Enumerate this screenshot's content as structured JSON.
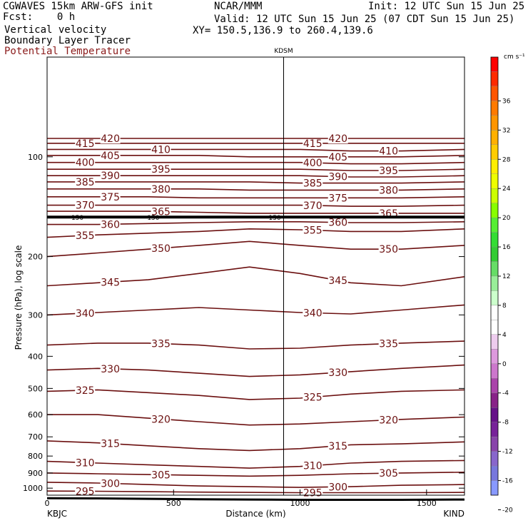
{
  "header": {
    "model": "CGWAVES 15km ARW-GFS init",
    "fcst_label": "Fcst:",
    "fcst_value": "0 h",
    "field1": "Vertical velocity",
    "field2": "Boundary Layer Tracer",
    "field3": "Potential Temperature",
    "agency": "NCAR/MMM",
    "init": "Init: 12 UTC Sun 15 Jun 25",
    "valid": "Valid: 12 UTC Sun 15 Jun 25 (07 CDT Sun 15 Jun 25)",
    "xy": "XY= 150.5,136.9 to 260.4,139.6"
  },
  "colors": {
    "contour": "#6b0f0f",
    "axis": "#000000"
  },
  "chart_data": {
    "type": "cross-section-contour",
    "xlabel": "Distance (km)",
    "ylabel": "Pressure (hPa), log scale",
    "xlim": [
      0,
      1650
    ],
    "ylim": [
      1050,
      50
    ],
    "y_log": true,
    "x_ticks": [
      0,
      500,
      1000,
      1500
    ],
    "y_ticks": [
      100,
      200,
      300,
      400,
      500,
      600,
      700,
      800,
      900,
      1000
    ],
    "station_marker": {
      "label": "KDSM",
      "x": 935
    },
    "left_station": "KBJC",
    "right_station": "KIND",
    "isentropes": [
      {
        "theta": 295,
        "p": [
          1020,
          1022,
          1025,
          1028,
          1030,
          1032,
          1032,
          1032,
          1030
        ]
      },
      {
        "theta": 300,
        "p": [
          960,
          965,
          975,
          985,
          990,
          995,
          990,
          980,
          975
        ]
      },
      {
        "theta": 305,
        "p": [
          900,
          905,
          910,
          915,
          920,
          915,
          905,
          900,
          895
        ]
      },
      {
        "theta": 310,
        "p": [
          830,
          840,
          850,
          860,
          870,
          860,
          840,
          830,
          825
        ]
      },
      {
        "theta": 315,
        "p": [
          720,
          730,
          745,
          760,
          770,
          760,
          740,
          735,
          725
        ]
      },
      {
        "theta": 320,
        "p": [
          600,
          600,
          615,
          630,
          645,
          640,
          630,
          620,
          610
        ]
      },
      {
        "theta": 325,
        "p": [
          510,
          505,
          515,
          525,
          540,
          535,
          520,
          510,
          505
        ]
      },
      {
        "theta": 330,
        "p": [
          440,
          435,
          440,
          450,
          460,
          455,
          445,
          435,
          425
        ]
      },
      {
        "theta": 335,
        "p": [
          370,
          365,
          365,
          370,
          380,
          378,
          370,
          365,
          360
        ]
      },
      {
        "theta": 340,
        "p": [
          300,
          295,
          290,
          285,
          290,
          295,
          298,
          290,
          280
        ]
      },
      {
        "theta": 345,
        "p": [
          245,
          240,
          235,
          225,
          215,
          225,
          240,
          245,
          230
        ]
      },
      {
        "theta": 350,
        "p": [
          200,
          195,
          190,
          185,
          180,
          185,
          190,
          190,
          185
        ]
      },
      {
        "theta": 355,
        "p": [
          175,
          172,
          170,
          168,
          165,
          166,
          168,
          168,
          165
        ]
      },
      {
        "theta": 360,
        "p": [
          160,
          160,
          159,
          158,
          157,
          157,
          158,
          158,
          157
        ]
      },
      {
        "theta": 365,
        "p": [
          146,
          146,
          146,
          147,
          148,
          148,
          148,
          148,
          148
        ]
      },
      {
        "theta": 370,
        "p": [
          140,
          140,
          140,
          140,
          140,
          140,
          141,
          141,
          140
        ]
      },
      {
        "theta": 375,
        "p": [
          132,
          132,
          132,
          133,
          133,
          133,
          133,
          133,
          132
        ]
      },
      {
        "theta": 380,
        "p": [
          125,
          125,
          125,
          125,
          126,
          126,
          126,
          126,
          125
        ]
      },
      {
        "theta": 385,
        "p": [
          119,
          119,
          119,
          119,
          119,
          120,
          120,
          120,
          119
        ]
      },
      {
        "theta": 390,
        "p": [
          114,
          114,
          114,
          114,
          114,
          114,
          115,
          115,
          114
        ]
      },
      {
        "theta": 395,
        "p": [
          109,
          109,
          109,
          109,
          109,
          109,
          110,
          110,
          109
        ]
      },
      {
        "theta": 400,
        "p": [
          104,
          104,
          104,
          104,
          104,
          104,
          105,
          105,
          104
        ]
      },
      {
        "theta": 405,
        "p": [
          99,
          99,
          99,
          99,
          100,
          100,
          100,
          100,
          99
        ]
      },
      {
        "theta": 410,
        "p": [
          95,
          95,
          95,
          95,
          95,
          95,
          96,
          96,
          95
        ]
      },
      {
        "theta": 415,
        "p": [
          91,
          91,
          91,
          91,
          91,
          91,
          91,
          91,
          91
        ]
      },
      {
        "theta": 420,
        "p": [
          88,
          88,
          88,
          88,
          88,
          88,
          88,
          88,
          88
        ]
      }
    ],
    "isentrope_x": [
      0,
      200,
      400,
      600,
      800,
      1000,
      1200,
      1400,
      1650
    ],
    "bl_tracer_label": "150",
    "tropopause_p": 152,
    "colorbar": {
      "unit": "cm s⁻¹",
      "labels": [
        "36",
        "32",
        "28",
        "24",
        "20",
        "16",
        "12",
        "8",
        "4",
        "0",
        "-4",
        "-8",
        "-12",
        "-16",
        "-20"
      ],
      "colors": [
        "#ff0000",
        "#ff2a00",
        "#ff5500",
        "#ff7a00",
        "#ff9500",
        "#ffb000",
        "#ffcc00",
        "#ffee00",
        "#eeff00",
        "#ccff00",
        "#88ff00",
        "#55ee33",
        "#33dd33",
        "#33cc33",
        "#66dd66",
        "#99ee99",
        "#ccffcc",
        "#ffffff",
        "#ffffff",
        "#eeccee",
        "#dd99dd",
        "#cc77cc",
        "#aa44aa",
        "#882288",
        "#661188",
        "#772299",
        "#8844aa",
        "#8866cc",
        "#7777dd",
        "#8899ff"
      ]
    }
  }
}
